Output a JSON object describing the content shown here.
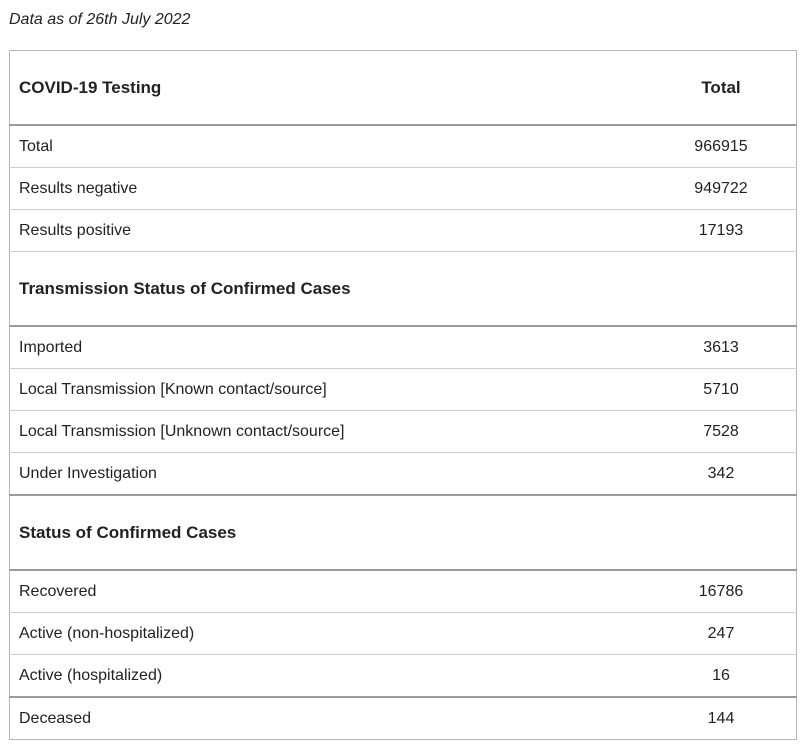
{
  "as_of": "Data as of 26th July 2022",
  "sections": [
    {
      "title": "COVID-19 Testing",
      "column_label": "Total",
      "rows": [
        {
          "label": "Total",
          "value": "966915"
        },
        {
          "label": "Results negative",
          "value": "949722"
        },
        {
          "label": "Results positive",
          "value": "17193"
        }
      ]
    },
    {
      "title": "Transmission Status of Confirmed Cases",
      "column_label": "",
      "rows": [
        {
          "label": "Imported",
          "value": "3613"
        },
        {
          "label": "Local Transmission [Known contact/source]",
          "value": "5710"
        },
        {
          "label": "Local Transmission [Unknown contact/source]",
          "value": "7528"
        },
        {
          "label": "Under Investigation",
          "value": "342"
        }
      ]
    },
    {
      "title": "Status of Confirmed Cases",
      "column_label": "",
      "rows": [
        {
          "label": "Recovered",
          "value": "16786"
        },
        {
          "label": "Active (non-hospitalized)",
          "value": "247"
        },
        {
          "label": "Active (hospitalized)",
          "value": "16"
        },
        {
          "label": "Deceased",
          "value": "144"
        }
      ]
    }
  ]
}
